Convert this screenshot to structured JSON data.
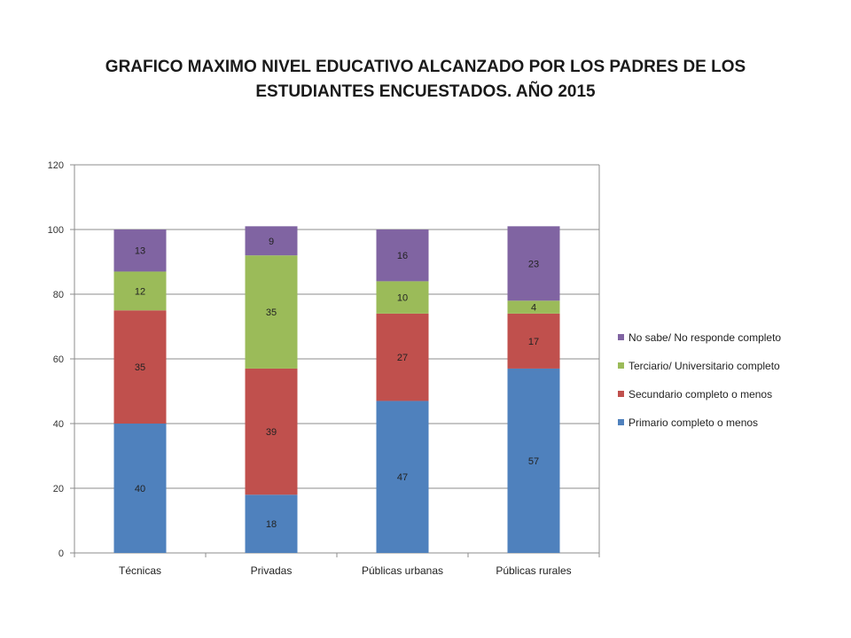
{
  "title": {
    "line1": "GRAFICO  MAXIMO NIVEL EDUCATIVO ALCANZADO POR LOS PADRES DE LOS",
    "line2": "ESTUDIANTES ENCUESTADOS. AÑO 2015"
  },
  "chart_data": {
    "type": "bar",
    "stacked": true,
    "title": "GRAFICO  MAXIMO NIVEL EDUCATIVO ALCANZADO POR LOS PADRES DE LOS ESTUDIANTES ENCUESTADOS. AÑO 2015",
    "xlabel": "",
    "ylabel": "",
    "ylim": [
      0,
      120
    ],
    "yticks": [
      0,
      20,
      40,
      60,
      80,
      100,
      120
    ],
    "grid": true,
    "legend_position": "right",
    "categories": [
      "Técnicas",
      "Privadas",
      "Públicas urbanas",
      "Públicas rurales"
    ],
    "series": [
      {
        "name": "Primario completo o menos",
        "color": "#4f81bd",
        "values": [
          40,
          18,
          47,
          57
        ]
      },
      {
        "name": "Secundario completo o menos",
        "color": "#c0504d",
        "values": [
          35,
          39,
          27,
          17
        ]
      },
      {
        "name": "Terciario/ Universitario completo",
        "color": "#9bbb59",
        "values": [
          12,
          35,
          10,
          4
        ]
      },
      {
        "name": "No sabe/ No responde completo",
        "color": "#8064a2",
        "values": [
          13,
          9,
          16,
          23
        ]
      }
    ]
  }
}
